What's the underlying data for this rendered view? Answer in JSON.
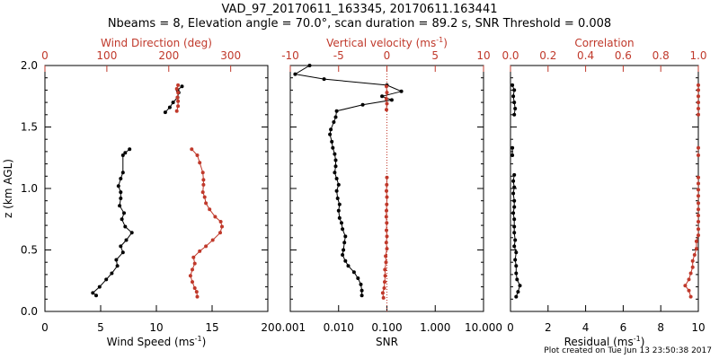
{
  "header": {
    "title_line1": "VAD_97_20170611_163345, 20170611.163441",
    "title_line2": "Nbeams = 8, Elevation angle = 70.0°, scan duration = 89.2 s, SNR Threshold = 0.008"
  },
  "footer": {
    "credit": "Plot created on Tue Jun 13 23:50:38 2017"
  },
  "colors": {
    "primary": "#000000",
    "secondary": "#c0392b"
  },
  "chart_data": [
    {
      "type": "line",
      "panel": "wind",
      "ylabel": "z (km AGL)",
      "ylim": [
        0,
        2
      ],
      "yticks": [
        "0.0",
        "0.5",
        "1.0",
        "1.5",
        "2.0"
      ],
      "xlabel": "Wind Speed (ms",
      "xlabel_sup": "-1",
      "xlabel_close": ")",
      "xlim": [
        0,
        20
      ],
      "xticks": [
        "0",
        "5",
        "10",
        "15",
        "20"
      ],
      "top_label": "Wind Direction (deg)",
      "top_xlim": [
        0,
        360
      ],
      "top_xticks": [
        "0",
        "100",
        "200",
        "300"
      ],
      "series": [
        {
          "axis": "bottom",
          "color": "#000000",
          "segments": [
            [
              [
                4.6,
                0.13
              ],
              [
                4.3,
                0.15
              ],
              [
                4.9,
                0.2
              ],
              [
                5.5,
                0.26
              ],
              [
                6.0,
                0.31
              ],
              [
                6.5,
                0.37
              ],
              [
                6.4,
                0.42
              ],
              [
                7.0,
                0.48
              ],
              [
                6.8,
                0.53
              ],
              [
                7.3,
                0.58
              ],
              [
                7.8,
                0.64
              ],
              [
                7.2,
                0.69
              ],
              [
                6.9,
                0.75
              ],
              [
                7.1,
                0.8
              ],
              [
                6.7,
                0.86
              ],
              [
                6.8,
                0.92
              ],
              [
                6.8,
                0.97
              ],
              [
                6.6,
                1.02
              ],
              [
                6.8,
                1.08
              ],
              [
                7.0,
                1.13
              ],
              [
                7.0,
                1.27
              ],
              [
                7.2,
                1.29
              ],
              [
                7.6,
                1.32
              ]
            ],
            [
              [
                10.8,
                1.62
              ],
              [
                11.2,
                1.66
              ],
              [
                11.5,
                1.7
              ],
              [
                11.9,
                1.74
              ],
              [
                12.0,
                1.78
              ],
              [
                11.9,
                1.8
              ],
              [
                12.3,
                1.83
              ]
            ]
          ]
        },
        {
          "axis": "top",
          "color": "#c0392b",
          "segments": [
            [
              [
                246,
                0.12
              ],
              [
                245,
                0.16
              ],
              [
                242,
                0.19
              ],
              [
                238,
                0.24
              ],
              [
                235,
                0.29
              ],
              [
                238,
                0.34
              ],
              [
                242,
                0.39
              ],
              [
                240,
                0.44
              ],
              [
                250,
                0.49
              ],
              [
                260,
                0.53
              ],
              [
                271,
                0.58
              ],
              [
                283,
                0.64
              ],
              [
                286,
                0.69
              ],
              [
                284,
                0.73
              ],
              [
                275,
                0.77
              ],
              [
                266,
                0.83
              ],
              [
                260,
                0.88
              ],
              [
                258,
                0.93
              ],
              [
                255,
                0.97
              ],
              [
                256,
                1.03
              ],
              [
                256,
                1.07
              ],
              [
                255,
                1.13
              ],
              [
                250,
                1.21
              ],
              [
                246,
                1.27
              ],
              [
                237,
                1.32
              ]
            ],
            [
              [
                213,
                1.63
              ],
              [
                215,
                1.67
              ],
              [
                215,
                1.71
              ],
              [
                214,
                1.74
              ],
              [
                215,
                1.78
              ],
              [
                213,
                1.81
              ],
              [
                215,
                1.84
              ]
            ]
          ]
        }
      ]
    },
    {
      "type": "line",
      "panel": "vertical-velocity",
      "xlabel": "SNR",
      "xscale": "log",
      "xlim": [
        0.001,
        10
      ],
      "xticks": [
        "0.001",
        "0.010",
        "0.100",
        "1.000",
        "10.000"
      ],
      "top_label": "Vertical velocity (ms",
      "top_label_sup": "-1",
      "top_label_close": ")",
      "top_xlim": [
        -10,
        10
      ],
      "top_xticks": [
        "-10",
        "-5",
        "0",
        "5",
        "10"
      ],
      "reference_line": 0,
      "series": [
        {
          "axis": "top",
          "color": "#000000",
          "segments": [
            [
              [
                -2.6,
                0.13
              ],
              [
                -2.6,
                0.17
              ],
              [
                -2.7,
                0.22
              ],
              [
                -3.0,
                0.27
              ],
              [
                -3.4,
                0.32
              ],
              [
                -4.0,
                0.37
              ],
              [
                -4.3,
                0.41
              ],
              [
                -4.6,
                0.46
              ],
              [
                -4.5,
                0.5
              ],
              [
                -4.4,
                0.56
              ],
              [
                -4.3,
                0.61
              ],
              [
                -4.6,
                0.67
              ],
              [
                -4.7,
                0.72
              ],
              [
                -4.9,
                0.76
              ],
              [
                -5.0,
                0.82
              ],
              [
                -4.9,
                0.87
              ],
              [
                -5.1,
                0.92
              ],
              [
                -5.2,
                0.98
              ],
              [
                -5.0,
                1.03
              ],
              [
                -5.2,
                1.08
              ],
              [
                -5.4,
                1.13
              ],
              [
                -5.3,
                1.18
              ],
              [
                -5.3,
                1.23
              ],
              [
                -5.4,
                1.28
              ],
              [
                -5.6,
                1.33
              ],
              [
                -5.7,
                1.38
              ],
              [
                -5.9,
                1.44
              ],
              [
                -5.8,
                1.48
              ],
              [
                -5.5,
                1.54
              ],
              [
                -5.3,
                1.58
              ],
              [
                -5.2,
                1.63
              ],
              [
                -2.5,
                1.68
              ],
              [
                0.5,
                1.72
              ],
              [
                -0.5,
                1.75
              ],
              [
                1.5,
                1.79
              ],
              [
                0.0,
                1.84
              ],
              [
                -6.5,
                1.89
              ],
              [
                -9.5,
                1.93
              ],
              [
                -8.0,
                2.0
              ]
            ]
          ]
        },
        {
          "axis": "bottom",
          "color": "#c0392b",
          "segments": [
            [
              [
                0.085,
                0.11
              ],
              [
                0.082,
                0.15
              ],
              [
                0.088,
                0.19
              ],
              [
                0.09,
                0.24
              ],
              [
                0.092,
                0.29
              ],
              [
                0.091,
                0.34
              ],
              [
                0.096,
                0.4
              ],
              [
                0.094,
                0.45
              ],
              [
                0.1,
                0.51
              ],
              [
                0.097,
                0.56
              ],
              [
                0.1,
                0.61
              ],
              [
                0.098,
                0.66
              ],
              [
                0.099,
                0.72
              ],
              [
                0.097,
                0.77
              ],
              [
                0.098,
                0.82
              ],
              [
                0.099,
                0.87
              ],
              [
                0.1,
                0.93
              ],
              [
                0.098,
                0.98
              ],
              [
                0.099,
                1.03
              ],
              [
                0.1,
                1.09
              ]
            ],
            [
              [
                0.098,
                1.64
              ],
              [
                0.1,
                1.69
              ],
              [
                0.097,
                1.73
              ],
              [
                0.1,
                1.78
              ],
              [
                0.098,
                1.83
              ]
            ]
          ]
        }
      ]
    },
    {
      "type": "line",
      "panel": "correlation",
      "xlabel": "Residual (ms",
      "xlabel_sup": "-1",
      "xlabel_close": ")",
      "xlim": [
        0,
        10
      ],
      "xticks": [
        "0",
        "2",
        "4",
        "6",
        "8",
        "10"
      ],
      "top_label": "Correlation",
      "top_xlim": [
        0,
        1
      ],
      "top_xticks": [
        "0.0",
        "0.2",
        "0.4",
        "0.6",
        "0.8",
        "1.0"
      ],
      "series": [
        {
          "axis": "bottom",
          "color": "#000000",
          "segments": [
            [
              [
                0.3,
                0.12
              ],
              [
                0.4,
                0.16
              ],
              [
                0.5,
                0.21
              ],
              [
                0.35,
                0.26
              ],
              [
                0.3,
                0.31
              ],
              [
                0.3,
                0.37
              ],
              [
                0.25,
                0.42
              ],
              [
                0.3,
                0.48
              ],
              [
                0.2,
                0.53
              ],
              [
                0.25,
                0.58
              ],
              [
                0.2,
                0.64
              ],
              [
                0.2,
                0.69
              ],
              [
                0.2,
                0.75
              ],
              [
                0.15,
                0.8
              ],
              [
                0.2,
                0.85
              ],
              [
                0.2,
                0.9
              ],
              [
                0.15,
                0.96
              ],
              [
                0.2,
                1.01
              ],
              [
                0.15,
                1.06
              ],
              [
                0.2,
                1.11
              ]
            ],
            [
              [
                0.1,
                1.27
              ],
              [
                0.1,
                1.33
              ]
            ],
            [
              [
                0.2,
                1.6
              ],
              [
                0.25,
                1.65
              ],
              [
                0.2,
                1.7
              ],
              [
                0.15,
                1.75
              ],
              [
                0.2,
                1.8
              ],
              [
                0.1,
                1.84
              ]
            ]
          ]
        },
        {
          "axis": "top",
          "color": "#c0392b",
          "segments": [
            [
              [
                0.96,
                0.12
              ],
              [
                0.95,
                0.17
              ],
              [
                0.93,
                0.21
              ],
              [
                0.95,
                0.26
              ],
              [
                0.96,
                0.31
              ],
              [
                0.97,
                0.36
              ],
              [
                0.97,
                0.41
              ],
              [
                0.98,
                0.46
              ],
              [
                0.99,
                0.51
              ],
              [
                0.99,
                0.57
              ],
              [
                1.0,
                0.62
              ],
              [
                1.0,
                0.67
              ],
              [
                1.0,
                0.73
              ],
              [
                1.0,
                0.78
              ],
              [
                1.0,
                0.83
              ],
              [
                1.0,
                0.88
              ],
              [
                1.0,
                0.94
              ],
              [
                1.0,
                0.99
              ],
              [
                1.0,
                1.04
              ],
              [
                1.0,
                1.09
              ]
            ],
            [
              [
                1.0,
                1.27
              ],
              [
                1.0,
                1.33
              ]
            ],
            [
              [
                1.0,
                1.6
              ],
              [
                1.0,
                1.65
              ],
              [
                1.0,
                1.7
              ],
              [
                1.0,
                1.75
              ],
              [
                1.0,
                1.8
              ],
              [
                1.0,
                1.84
              ]
            ]
          ]
        }
      ]
    }
  ]
}
